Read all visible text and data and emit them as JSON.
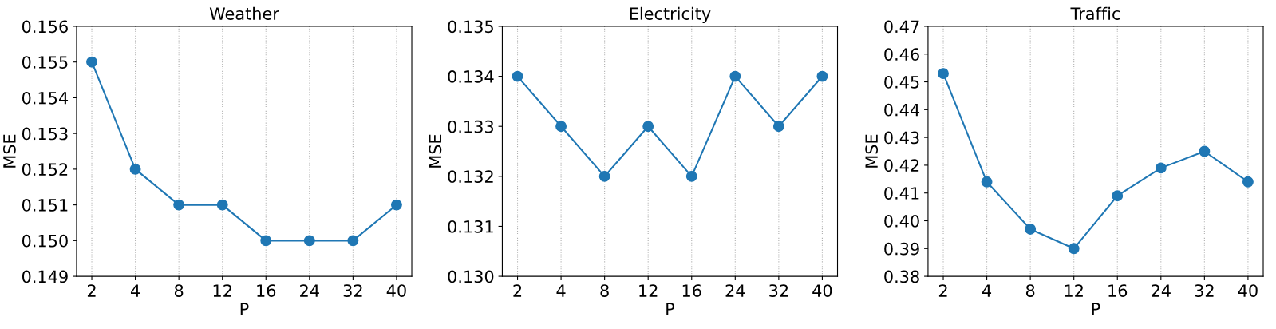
{
  "chart_data": [
    {
      "type": "line",
      "title": "Weather",
      "xlabel": "P",
      "ylabel": "MSE",
      "categories": [
        "2",
        "4",
        "8",
        "12",
        "16",
        "24",
        "32",
        "40"
      ],
      "series": [
        {
          "color": "#1f77b4",
          "values": [
            0.155,
            0.152,
            0.151,
            0.151,
            0.15,
            0.15,
            0.15,
            0.151
          ]
        }
      ],
      "ylim": [
        0.149,
        0.156
      ],
      "yticks": [
        0.149,
        {
          "value": 0.15,
          "label": "0.150"
        },
        0.151,
        0.152,
        0.153,
        0.154,
        0.155,
        0.156
      ],
      "grid": "x",
      "marker": "circle"
    },
    {
      "type": "line",
      "title": "Electricity",
      "xlabel": "P",
      "ylabel": "MSE",
      "categories": [
        "2",
        "4",
        "8",
        "12",
        "16",
        "24",
        "32",
        "40"
      ],
      "series": [
        {
          "color": "#1f77b4",
          "values": [
            0.134,
            0.133,
            0.132,
            0.133,
            0.132,
            0.134,
            0.133,
            0.134
          ]
        }
      ],
      "ylim": [
        0.13,
        0.135
      ],
      "yticks": [
        {
          "value": 0.13,
          "label": "0.130"
        },
        0.131,
        0.132,
        0.133,
        0.134,
        0.135
      ],
      "grid": "x",
      "marker": "circle"
    },
    {
      "type": "line",
      "title": "Traffic",
      "xlabel": "P",
      "ylabel": "MSE",
      "categories": [
        "2",
        "4",
        "8",
        "12",
        "16",
        "24",
        "32",
        "40"
      ],
      "series": [
        {
          "color": "#1f77b4",
          "values": [
            0.453,
            0.414,
            0.397,
            0.39,
            0.409,
            0.419,
            0.425,
            0.414
          ]
        }
      ],
      "ylim": [
        0.38,
        0.47
      ],
      "yticks": [
        {
          "value": 0.38,
          "label": "0.38"
        },
        {
          "value": 0.39,
          "label": "0.39"
        },
        {
          "value": 0.4,
          "label": "0.40"
        },
        {
          "value": 0.41,
          "label": "0.41"
        },
        {
          "value": 0.42,
          "label": "0.42"
        },
        {
          "value": 0.43,
          "label": "0.43"
        },
        {
          "value": 0.44,
          "label": "0.44"
        },
        {
          "value": 0.45,
          "label": "0.45"
        },
        {
          "value": 0.46,
          "label": "0.46"
        },
        {
          "value": 0.47,
          "label": "0.47"
        }
      ],
      "grid": "x",
      "marker": "circle"
    }
  ]
}
